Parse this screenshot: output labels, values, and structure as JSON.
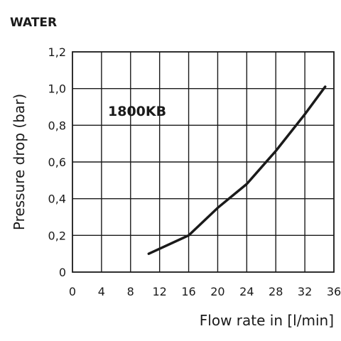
{
  "title": "WATER",
  "chart_data": {
    "type": "line",
    "title": "WATER",
    "xlabel": "Flow rate in [l/min]",
    "ylabel": "Pressure drop (bar)",
    "xlim": [
      0,
      36
    ],
    "ylim": [
      0,
      1.2
    ],
    "x_ticks": [
      0,
      4,
      8,
      12,
      16,
      20,
      24,
      28,
      32,
      36
    ],
    "y_ticks": [
      0,
      0.2,
      0.4,
      0.6,
      0.8,
      1.0,
      1.2
    ],
    "x_tick_labels": [
      "0",
      "4",
      "8",
      "12",
      "16",
      "20",
      "24",
      "28",
      "32",
      "36"
    ],
    "y_tick_labels": [
      "0",
      "0,2",
      "0,4",
      "0,6",
      "0,8",
      "1,0",
      "1,2"
    ],
    "grid": true,
    "annotation": "1800KB",
    "series": [
      {
        "x": [
          10.5,
          16,
          20,
          24,
          28,
          32,
          34.8
        ],
        "y": [
          0.1,
          0.2,
          0.35,
          0.48,
          0.66,
          0.86,
          1.01
        ]
      }
    ],
    "line_color": "#1a1a1a"
  }
}
